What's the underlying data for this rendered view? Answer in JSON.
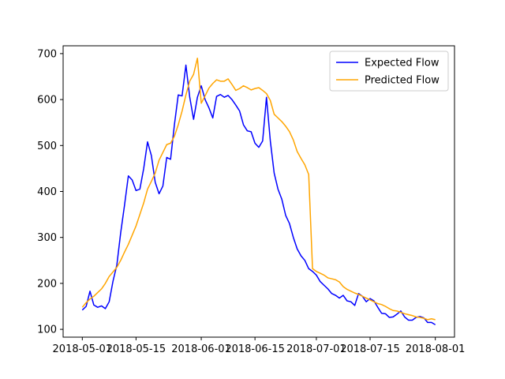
{
  "chart_data": {
    "type": "line",
    "title": "",
    "xlabel": "",
    "ylabel": "",
    "x_ticks": [
      "2018-05-01",
      "2018-05-15",
      "2018-06-01",
      "2018-06-15",
      "2018-07-01",
      "2018-07-15",
      "2018-08-01"
    ],
    "y_ticks": [
      100,
      200,
      300,
      400,
      500,
      600,
      700
    ],
    "xlim": [
      "2018-04-26",
      "2018-08-06"
    ],
    "ylim": [
      83,
      717
    ],
    "grid": false,
    "legend_position": "top-right",
    "colors": {
      "expected": "#0000ff",
      "predicted": "#ffa500"
    },
    "series": [
      {
        "name": "Expected Flow",
        "color": "#0000ff",
        "points": [
          [
            "2018-05-01",
            142
          ],
          [
            "2018-05-02",
            150
          ],
          [
            "2018-05-03",
            183
          ],
          [
            "2018-05-04",
            153
          ],
          [
            "2018-05-05",
            148
          ],
          [
            "2018-05-06",
            151
          ],
          [
            "2018-05-07",
            145
          ],
          [
            "2018-05-08",
            160
          ],
          [
            "2018-05-09",
            205
          ],
          [
            "2018-05-10",
            240
          ],
          [
            "2018-05-11",
            310
          ],
          [
            "2018-05-12",
            370
          ],
          [
            "2018-05-13",
            434
          ],
          [
            "2018-05-14",
            425
          ],
          [
            "2018-05-15",
            402
          ],
          [
            "2018-05-16",
            405
          ],
          [
            "2018-05-17",
            450
          ],
          [
            "2018-05-18",
            508
          ],
          [
            "2018-05-19",
            478
          ],
          [
            "2018-05-20",
            420
          ],
          [
            "2018-05-21",
            395
          ],
          [
            "2018-05-22",
            412
          ],
          [
            "2018-05-23",
            474
          ],
          [
            "2018-05-24",
            470
          ],
          [
            "2018-05-25",
            545
          ],
          [
            "2018-05-26",
            610
          ],
          [
            "2018-05-27",
            608
          ],
          [
            "2018-05-28",
            675
          ],
          [
            "2018-05-29",
            605
          ],
          [
            "2018-05-30",
            557
          ],
          [
            "2018-05-31",
            605
          ],
          [
            "2018-06-01",
            630
          ],
          [
            "2018-06-02",
            600
          ],
          [
            "2018-06-03",
            582
          ],
          [
            "2018-06-04",
            560
          ],
          [
            "2018-06-05",
            607
          ],
          [
            "2018-06-06",
            611
          ],
          [
            "2018-06-07",
            605
          ],
          [
            "2018-06-08",
            609
          ],
          [
            "2018-06-09",
            600
          ],
          [
            "2018-06-10",
            588
          ],
          [
            "2018-06-11",
            575
          ],
          [
            "2018-06-12",
            545
          ],
          [
            "2018-06-13",
            532
          ],
          [
            "2018-06-14",
            530
          ],
          [
            "2018-06-15",
            505
          ],
          [
            "2018-06-16",
            496
          ],
          [
            "2018-06-17",
            510
          ],
          [
            "2018-06-18",
            605
          ],
          [
            "2018-06-19",
            510
          ],
          [
            "2018-06-20",
            440
          ],
          [
            "2018-06-21",
            405
          ],
          [
            "2018-06-22",
            383
          ],
          [
            "2018-06-23",
            348
          ],
          [
            "2018-06-24",
            330
          ],
          [
            "2018-06-25",
            300
          ],
          [
            "2018-06-26",
            275
          ],
          [
            "2018-06-27",
            260
          ],
          [
            "2018-06-28",
            250
          ],
          [
            "2018-06-29",
            232
          ],
          [
            "2018-06-30",
            226
          ],
          [
            "2018-07-01",
            218
          ],
          [
            "2018-07-02",
            204
          ],
          [
            "2018-07-03",
            196
          ],
          [
            "2018-07-04",
            188
          ],
          [
            "2018-07-05",
            178
          ],
          [
            "2018-07-06",
            174
          ],
          [
            "2018-07-07",
            168
          ],
          [
            "2018-07-08",
            174
          ],
          [
            "2018-07-09",
            162
          ],
          [
            "2018-07-10",
            160
          ],
          [
            "2018-07-11",
            152
          ],
          [
            "2018-07-12",
            178
          ],
          [
            "2018-07-13",
            172
          ],
          [
            "2018-07-14",
            160
          ],
          [
            "2018-07-15",
            167
          ],
          [
            "2018-07-16",
            162
          ],
          [
            "2018-07-17",
            148
          ],
          [
            "2018-07-18",
            135
          ],
          [
            "2018-07-19",
            134
          ],
          [
            "2018-07-20",
            126
          ],
          [
            "2018-07-21",
            127
          ],
          [
            "2018-07-22",
            133
          ],
          [
            "2018-07-23",
            140
          ],
          [
            "2018-07-24",
            127
          ],
          [
            "2018-07-25",
            120
          ],
          [
            "2018-07-26",
            120
          ],
          [
            "2018-07-27",
            126
          ],
          [
            "2018-07-28",
            128
          ],
          [
            "2018-07-29",
            125
          ],
          [
            "2018-07-30",
            115
          ],
          [
            "2018-07-31",
            115
          ],
          [
            "2018-08-01",
            110
          ]
        ]
      },
      {
        "name": "Predicted Flow",
        "color": "#ffa500",
        "points": [
          [
            "2018-05-01",
            148
          ],
          [
            "2018-05-02",
            158
          ],
          [
            "2018-05-03",
            166
          ],
          [
            "2018-05-04",
            172
          ],
          [
            "2018-05-05",
            180
          ],
          [
            "2018-05-06",
            188
          ],
          [
            "2018-05-07",
            200
          ],
          [
            "2018-05-08",
            215
          ],
          [
            "2018-05-09",
            225
          ],
          [
            "2018-05-10",
            235
          ],
          [
            "2018-05-11",
            250
          ],
          [
            "2018-05-12",
            268
          ],
          [
            "2018-05-13",
            285
          ],
          [
            "2018-05-14",
            305
          ],
          [
            "2018-05-15",
            325
          ],
          [
            "2018-05-16",
            350
          ],
          [
            "2018-05-17",
            375
          ],
          [
            "2018-05-18",
            405
          ],
          [
            "2018-05-19",
            422
          ],
          [
            "2018-05-20",
            440
          ],
          [
            "2018-05-21",
            468
          ],
          [
            "2018-05-22",
            485
          ],
          [
            "2018-05-23",
            502
          ],
          [
            "2018-05-24",
            505
          ],
          [
            "2018-05-25",
            520
          ],
          [
            "2018-05-26",
            545
          ],
          [
            "2018-05-27",
            575
          ],
          [
            "2018-05-28",
            610
          ],
          [
            "2018-05-29",
            640
          ],
          [
            "2018-05-30",
            655
          ],
          [
            "2018-05-31",
            690
          ],
          [
            "2018-06-01",
            592
          ],
          [
            "2018-06-02",
            608
          ],
          [
            "2018-06-03",
            625
          ],
          [
            "2018-06-04",
            635
          ],
          [
            "2018-06-05",
            643
          ],
          [
            "2018-06-06",
            640
          ],
          [
            "2018-06-07",
            640
          ],
          [
            "2018-06-08",
            645
          ],
          [
            "2018-06-09",
            633
          ],
          [
            "2018-06-10",
            620
          ],
          [
            "2018-06-11",
            624
          ],
          [
            "2018-06-12",
            630
          ],
          [
            "2018-06-13",
            626
          ],
          [
            "2018-06-14",
            621
          ],
          [
            "2018-06-15",
            624
          ],
          [
            "2018-06-16",
            626
          ],
          [
            "2018-06-17",
            620
          ],
          [
            "2018-06-18",
            613
          ],
          [
            "2018-06-19",
            598
          ],
          [
            "2018-06-20",
            568
          ],
          [
            "2018-06-21",
            560
          ],
          [
            "2018-06-22",
            552
          ],
          [
            "2018-06-23",
            542
          ],
          [
            "2018-06-24",
            530
          ],
          [
            "2018-06-25",
            512
          ],
          [
            "2018-06-26",
            487
          ],
          [
            "2018-06-27",
            472
          ],
          [
            "2018-06-28",
            458
          ],
          [
            "2018-06-29",
            437
          ],
          [
            "2018-06-30",
            232
          ],
          [
            "2018-07-01",
            226
          ],
          [
            "2018-07-02",
            222
          ],
          [
            "2018-07-03",
            218
          ],
          [
            "2018-07-04",
            212
          ],
          [
            "2018-07-05",
            210
          ],
          [
            "2018-07-06",
            208
          ],
          [
            "2018-07-07",
            203
          ],
          [
            "2018-07-08",
            193
          ],
          [
            "2018-07-09",
            187
          ],
          [
            "2018-07-10",
            183
          ],
          [
            "2018-07-11",
            179
          ],
          [
            "2018-07-12",
            176
          ],
          [
            "2018-07-13",
            172
          ],
          [
            "2018-07-14",
            168
          ],
          [
            "2018-07-15",
            164
          ],
          [
            "2018-07-16",
            160
          ],
          [
            "2018-07-17",
            156
          ],
          [
            "2018-07-18",
            154
          ],
          [
            "2018-07-19",
            150
          ],
          [
            "2018-07-20",
            145
          ],
          [
            "2018-07-21",
            141
          ],
          [
            "2018-07-22",
            140
          ],
          [
            "2018-07-23",
            137
          ],
          [
            "2018-07-24",
            134
          ],
          [
            "2018-07-25",
            132
          ],
          [
            "2018-07-26",
            130
          ],
          [
            "2018-07-27",
            127
          ],
          [
            "2018-07-28",
            126
          ],
          [
            "2018-07-29",
            124
          ],
          [
            "2018-07-30",
            121
          ],
          [
            "2018-07-31",
            123
          ],
          [
            "2018-08-01",
            121
          ]
        ]
      }
    ]
  }
}
